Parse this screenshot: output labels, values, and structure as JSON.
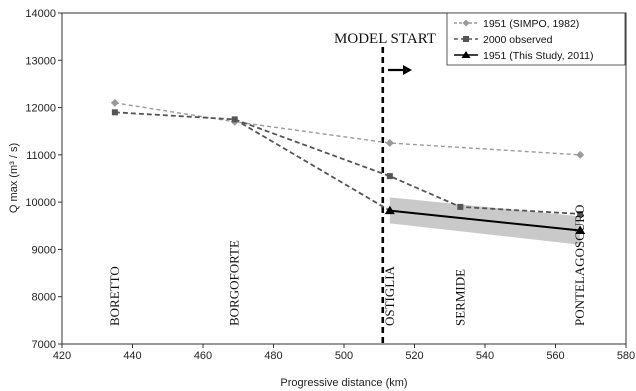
{
  "chart_data": {
    "type": "line",
    "xlabel": "Progressive distance (km)",
    "ylabel": "Q max (m³ / s)",
    "xlim": [
      420,
      580
    ],
    "ylim": [
      7000,
      14000
    ],
    "x_ticks": [
      "420",
      "440",
      "460",
      "480",
      "500",
      "520",
      "540",
      "560",
      "580"
    ],
    "y_ticks": [
      "7000",
      "8000",
      "9000",
      "10000",
      "11000",
      "12000",
      "13000",
      "14000"
    ],
    "grid": false,
    "legend_position": "top-right",
    "series": [
      {
        "name": "1951 (SIMPO, 1982)",
        "style": "dashed",
        "marker": "cross-diamond",
        "color": "#9a9a9a",
        "x": [
          435,
          469,
          513,
          567
        ],
        "y": [
          12100,
          11700,
          11250,
          11000
        ]
      },
      {
        "name": "2000 observed",
        "style": "dashed",
        "marker": "square",
        "color": "#555555",
        "x": [
          435,
          469,
          513,
          533,
          567
        ],
        "y": [
          11900,
          11750,
          10550,
          9900,
          9750
        ]
      },
      {
        "name": "1951 (This Study, 2011)",
        "style": "solid",
        "marker": "triangle",
        "color": "#000000",
        "x": [
          513,
          567
        ],
        "y": [
          9820,
          9400
        ],
        "band_upper": [
          10100,
          9700
        ],
        "band_lower": [
          9550,
          9100
        ]
      }
    ],
    "extra_lines": [
      {
        "style": "dashed",
        "color": "#555555",
        "x": [
          469,
          513
        ],
        "y": [
          11750,
          9820
        ]
      }
    ],
    "model_start": {
      "x": 511,
      "label": "MODEL START"
    },
    "stations": [
      {
        "name": "BORETTO",
        "x": 435
      },
      {
        "name": "BORGOFORTE",
        "x": 469
      },
      {
        "name": "OSTIGLIA",
        "x": 513
      },
      {
        "name": "SERMIDE",
        "x": 533
      },
      {
        "name": "PONTELAGOSCURO",
        "x": 567
      }
    ]
  }
}
